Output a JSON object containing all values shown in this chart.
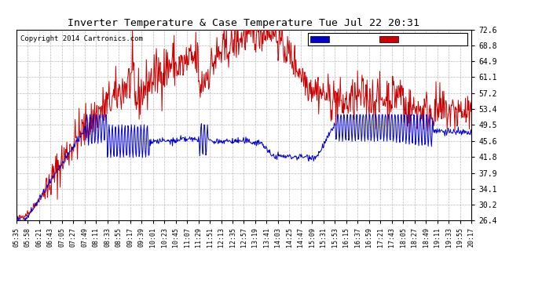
{
  "title": "Inverter Temperature & Case Temperature Tue Jul 22 20:31",
  "copyright": "Copyright 2014 Cartronics.com",
  "background_color": "#ffffff",
  "plot_bg_color": "#ffffff",
  "grid_color": "#bbbbbb",
  "yticks": [
    26.4,
    30.2,
    34.1,
    37.9,
    41.8,
    45.6,
    49.5,
    53.4,
    57.2,
    61.1,
    64.9,
    68.8,
    72.6
  ],
  "ylim": [
    26.4,
    72.6
  ],
  "legend_case_color": "#0000cc",
  "legend_inverter_color": "#cc0000",
  "inverter_color": "#cc0000",
  "case_color": "#0000cc",
  "xtick_labels": [
    "05:35",
    "05:58",
    "06:21",
    "06:43",
    "07:05",
    "07:27",
    "07:49",
    "08:11",
    "08:33",
    "08:55",
    "09:17",
    "09:39",
    "10:01",
    "10:23",
    "10:45",
    "11:07",
    "11:29",
    "11:51",
    "12:13",
    "12:35",
    "12:57",
    "13:19",
    "13:41",
    "14:03",
    "14:25",
    "14:47",
    "15:09",
    "15:31",
    "15:53",
    "16:15",
    "16:37",
    "16:59",
    "17:21",
    "17:43",
    "18:05",
    "18:27",
    "18:49",
    "19:11",
    "19:33",
    "19:55",
    "20:17"
  ]
}
